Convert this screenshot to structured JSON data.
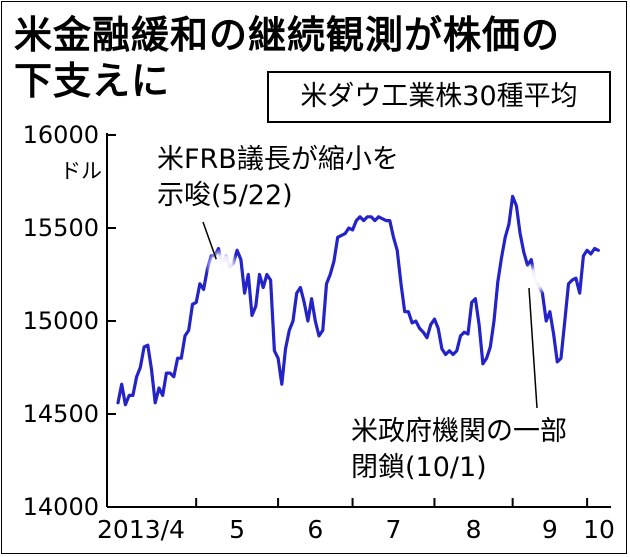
{
  "headline": {
    "line1": "米金融緩和の継続観測が株価の",
    "line2": "下支えに"
  },
  "chart_data": {
    "type": "line",
    "title": "米ダウ工業株30種平均",
    "unit": "ドル",
    "ylim": [
      14000,
      16000
    ],
    "yticks": [
      16000,
      15500,
      15000,
      14500,
      14000
    ],
    "xlim": [
      0,
      130
    ],
    "xticks": [
      {
        "x": 0,
        "label": "2013/4"
      },
      {
        "x": 21,
        "label": "5"
      },
      {
        "x": 43,
        "label": "6"
      },
      {
        "x": 63,
        "label": "7"
      },
      {
        "x": 85,
        "label": "8"
      },
      {
        "x": 106,
        "label": "9"
      },
      {
        "x": 126,
        "label": "10"
      }
    ],
    "grid": false,
    "series": [
      {
        "color": "#2323c8",
        "x": [
          0,
          1,
          2,
          3,
          4,
          5,
          6,
          7,
          8,
          9,
          10,
          11,
          12,
          13,
          14,
          15,
          16,
          17,
          18,
          19,
          20,
          21,
          22,
          23,
          24,
          25,
          26,
          27,
          28,
          29,
          30,
          31,
          32,
          33,
          34,
          35,
          36,
          37,
          38,
          39,
          40,
          41,
          42,
          43,
          44,
          45,
          46,
          47,
          48,
          49,
          50,
          51,
          52,
          53,
          54,
          55,
          56,
          57,
          58,
          59,
          60,
          61,
          62,
          63,
          64,
          65,
          66,
          67,
          68,
          69,
          70,
          71,
          72,
          73,
          74,
          75,
          76,
          77,
          78,
          79,
          80,
          81,
          82,
          83,
          84,
          85,
          86,
          87,
          88,
          89,
          90,
          91,
          92,
          93,
          94,
          95,
          96,
          97,
          98,
          99,
          100,
          101,
          102,
          103,
          104,
          105,
          106,
          107,
          108,
          109,
          110,
          111,
          112,
          113,
          114,
          115,
          116,
          117,
          118,
          119,
          120,
          121,
          122,
          123,
          124,
          125,
          126,
          127,
          128,
          129
        ],
        "y": [
          14560,
          14660,
          14550,
          14600,
          14600,
          14700,
          14750,
          14860,
          14870,
          14740,
          14560,
          14640,
          14600,
          14720,
          14720,
          14700,
          14800,
          14800,
          14920,
          14950,
          15090,
          15100,
          15200,
          15170,
          15280,
          15350,
          15350,
          15390,
          15300,
          15350,
          15290,
          15310,
          15380,
          15330,
          15150,
          15250,
          15030,
          15080,
          15250,
          15180,
          15250,
          15220,
          14840,
          14800,
          14660,
          14850,
          14950,
          15000,
          15150,
          15180,
          15100,
          15000,
          15120,
          15000,
          14920,
          14950,
          15200,
          15250,
          15320,
          15450,
          15460,
          15470,
          15500,
          15490,
          15540,
          15560,
          15540,
          15560,
          15560,
          15540,
          15560,
          15550,
          15540,
          15540,
          15450,
          15380,
          15200,
          15050,
          15050,
          14990,
          15000,
          14960,
          14940,
          14910,
          14980,
          15010,
          14960,
          14850,
          14820,
          14840,
          14820,
          14840,
          14920,
          14940,
          14930,
          15100,
          15120,
          14980,
          14770,
          14800,
          14860,
          15000,
          15210,
          15340,
          15450,
          15520,
          15670,
          15620,
          15470,
          15370,
          15300,
          15330,
          15220,
          15190,
          15150,
          15000,
          15050,
          14930,
          14780,
          14800,
          15000,
          15200,
          15220,
          15230,
          15150,
          15350,
          15380,
          15360,
          15390,
          15380
        ]
      }
    ],
    "annotations": [
      {
        "x": 28,
        "lines": [
          "米FRB議長が縮小を",
          "示唆(5/22)"
        ]
      },
      {
        "x": 112,
        "lines": [
          "米政府機関の一部",
          "閉鎖(10/1)"
        ]
      }
    ]
  }
}
